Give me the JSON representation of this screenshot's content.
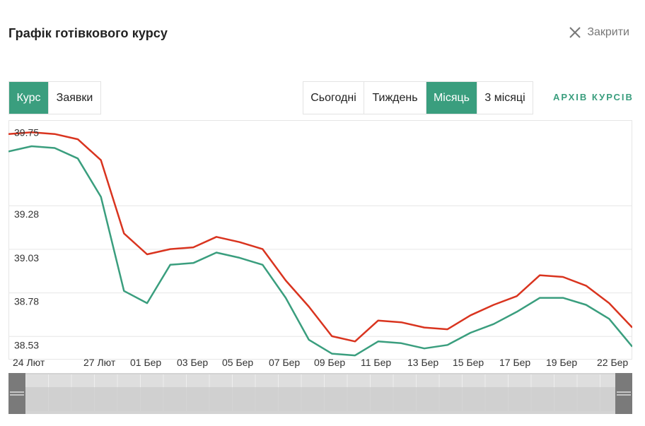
{
  "header": {
    "title": "Графік готівкового курсу",
    "close_label": "Закрити"
  },
  "mode_tabs": [
    {
      "label": "Курс",
      "active": true
    },
    {
      "label": "Заявки",
      "active": false
    }
  ],
  "period_tabs": [
    {
      "label": "Сьогодні",
      "active": false
    },
    {
      "label": "Тиждень",
      "active": false
    },
    {
      "label": "Місяць",
      "active": true
    },
    {
      "label": "3 місяці",
      "active": false
    }
  ],
  "archive_link": "АРХІВ КУРСІВ",
  "colors": {
    "accent": "#3a9e7e",
    "sell_line": "#d9341f",
    "buy_line": "#3a9e7e",
    "grid": "#e6e6e6"
  },
  "chart_data": {
    "type": "line",
    "ylim": [
      38.45,
      39.82
    ],
    "y_ticks": [
      "39.75",
      "39.28",
      "39.03",
      "38.78",
      "38.53"
    ],
    "x_tick_labels": [
      "24 Лют",
      "27 Лют",
      "01 Бер",
      "03 Бер",
      "05 Бер",
      "07 Бер",
      "09 Бер",
      "11 Бер",
      "13 Бер",
      "15 Бер",
      "17 Бер",
      "19 Бер",
      "22 Бер"
    ],
    "series": [
      {
        "color": "#d9341f",
        "values": [
          39.74,
          39.75,
          39.74,
          39.71,
          39.59,
          39.17,
          39.05,
          39.08,
          39.09,
          39.15,
          39.12,
          39.08,
          38.9,
          38.75,
          38.58,
          38.55,
          38.67,
          38.66,
          38.63,
          38.62,
          38.7,
          38.76,
          38.81,
          38.93,
          38.92,
          38.87,
          38.77,
          38.63
        ]
      },
      {
        "color": "#3a9e7e",
        "values": [
          39.64,
          39.67,
          39.66,
          39.6,
          39.38,
          38.84,
          38.77,
          38.99,
          39.0,
          39.06,
          39.03,
          38.99,
          38.8,
          38.56,
          38.48,
          38.47,
          38.55,
          38.54,
          38.51,
          38.53,
          38.6,
          38.65,
          38.72,
          38.8,
          38.8,
          38.76,
          38.68,
          38.52
        ]
      }
    ]
  }
}
